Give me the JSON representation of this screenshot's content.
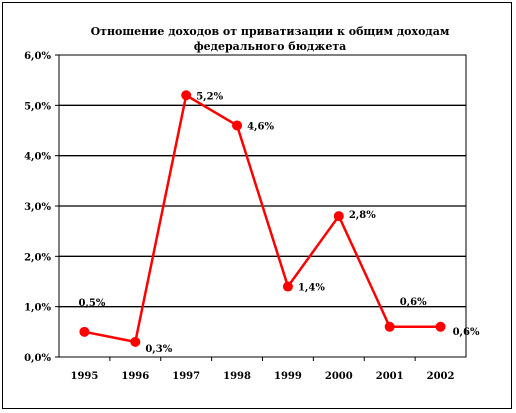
{
  "chart_data": {
    "type": "line",
    "title": [
      "Отношение доходов от приватизации к общим доходам",
      "федерального бюджета"
    ],
    "xlabel": "",
    "ylabel": "",
    "ylim": [
      0,
      6
    ],
    "y_ticks": [
      0,
      1,
      2,
      3,
      4,
      5,
      6
    ],
    "y_tick_labels": [
      "0,0%",
      "1,0%",
      "2,0%",
      "3,0%",
      "4,0%",
      "5,0%",
      "6,0%"
    ],
    "grid": "horizontal",
    "legend": "none",
    "categories": [
      "1995",
      "1996",
      "1997",
      "1998",
      "1999",
      "2000",
      "2001",
      "2002"
    ],
    "series": [
      {
        "values": [
          0.5,
          0.3,
          5.2,
          4.6,
          1.4,
          2.8,
          0.6,
          0.6
        ],
        "data_labels": [
          "0,5%",
          "0,3%",
          "5,2%",
          "4,6%",
          "1,4%",
          "2,8%",
          "0,6%",
          "0,6%"
        ],
        "color": "#ff0000"
      }
    ]
  }
}
